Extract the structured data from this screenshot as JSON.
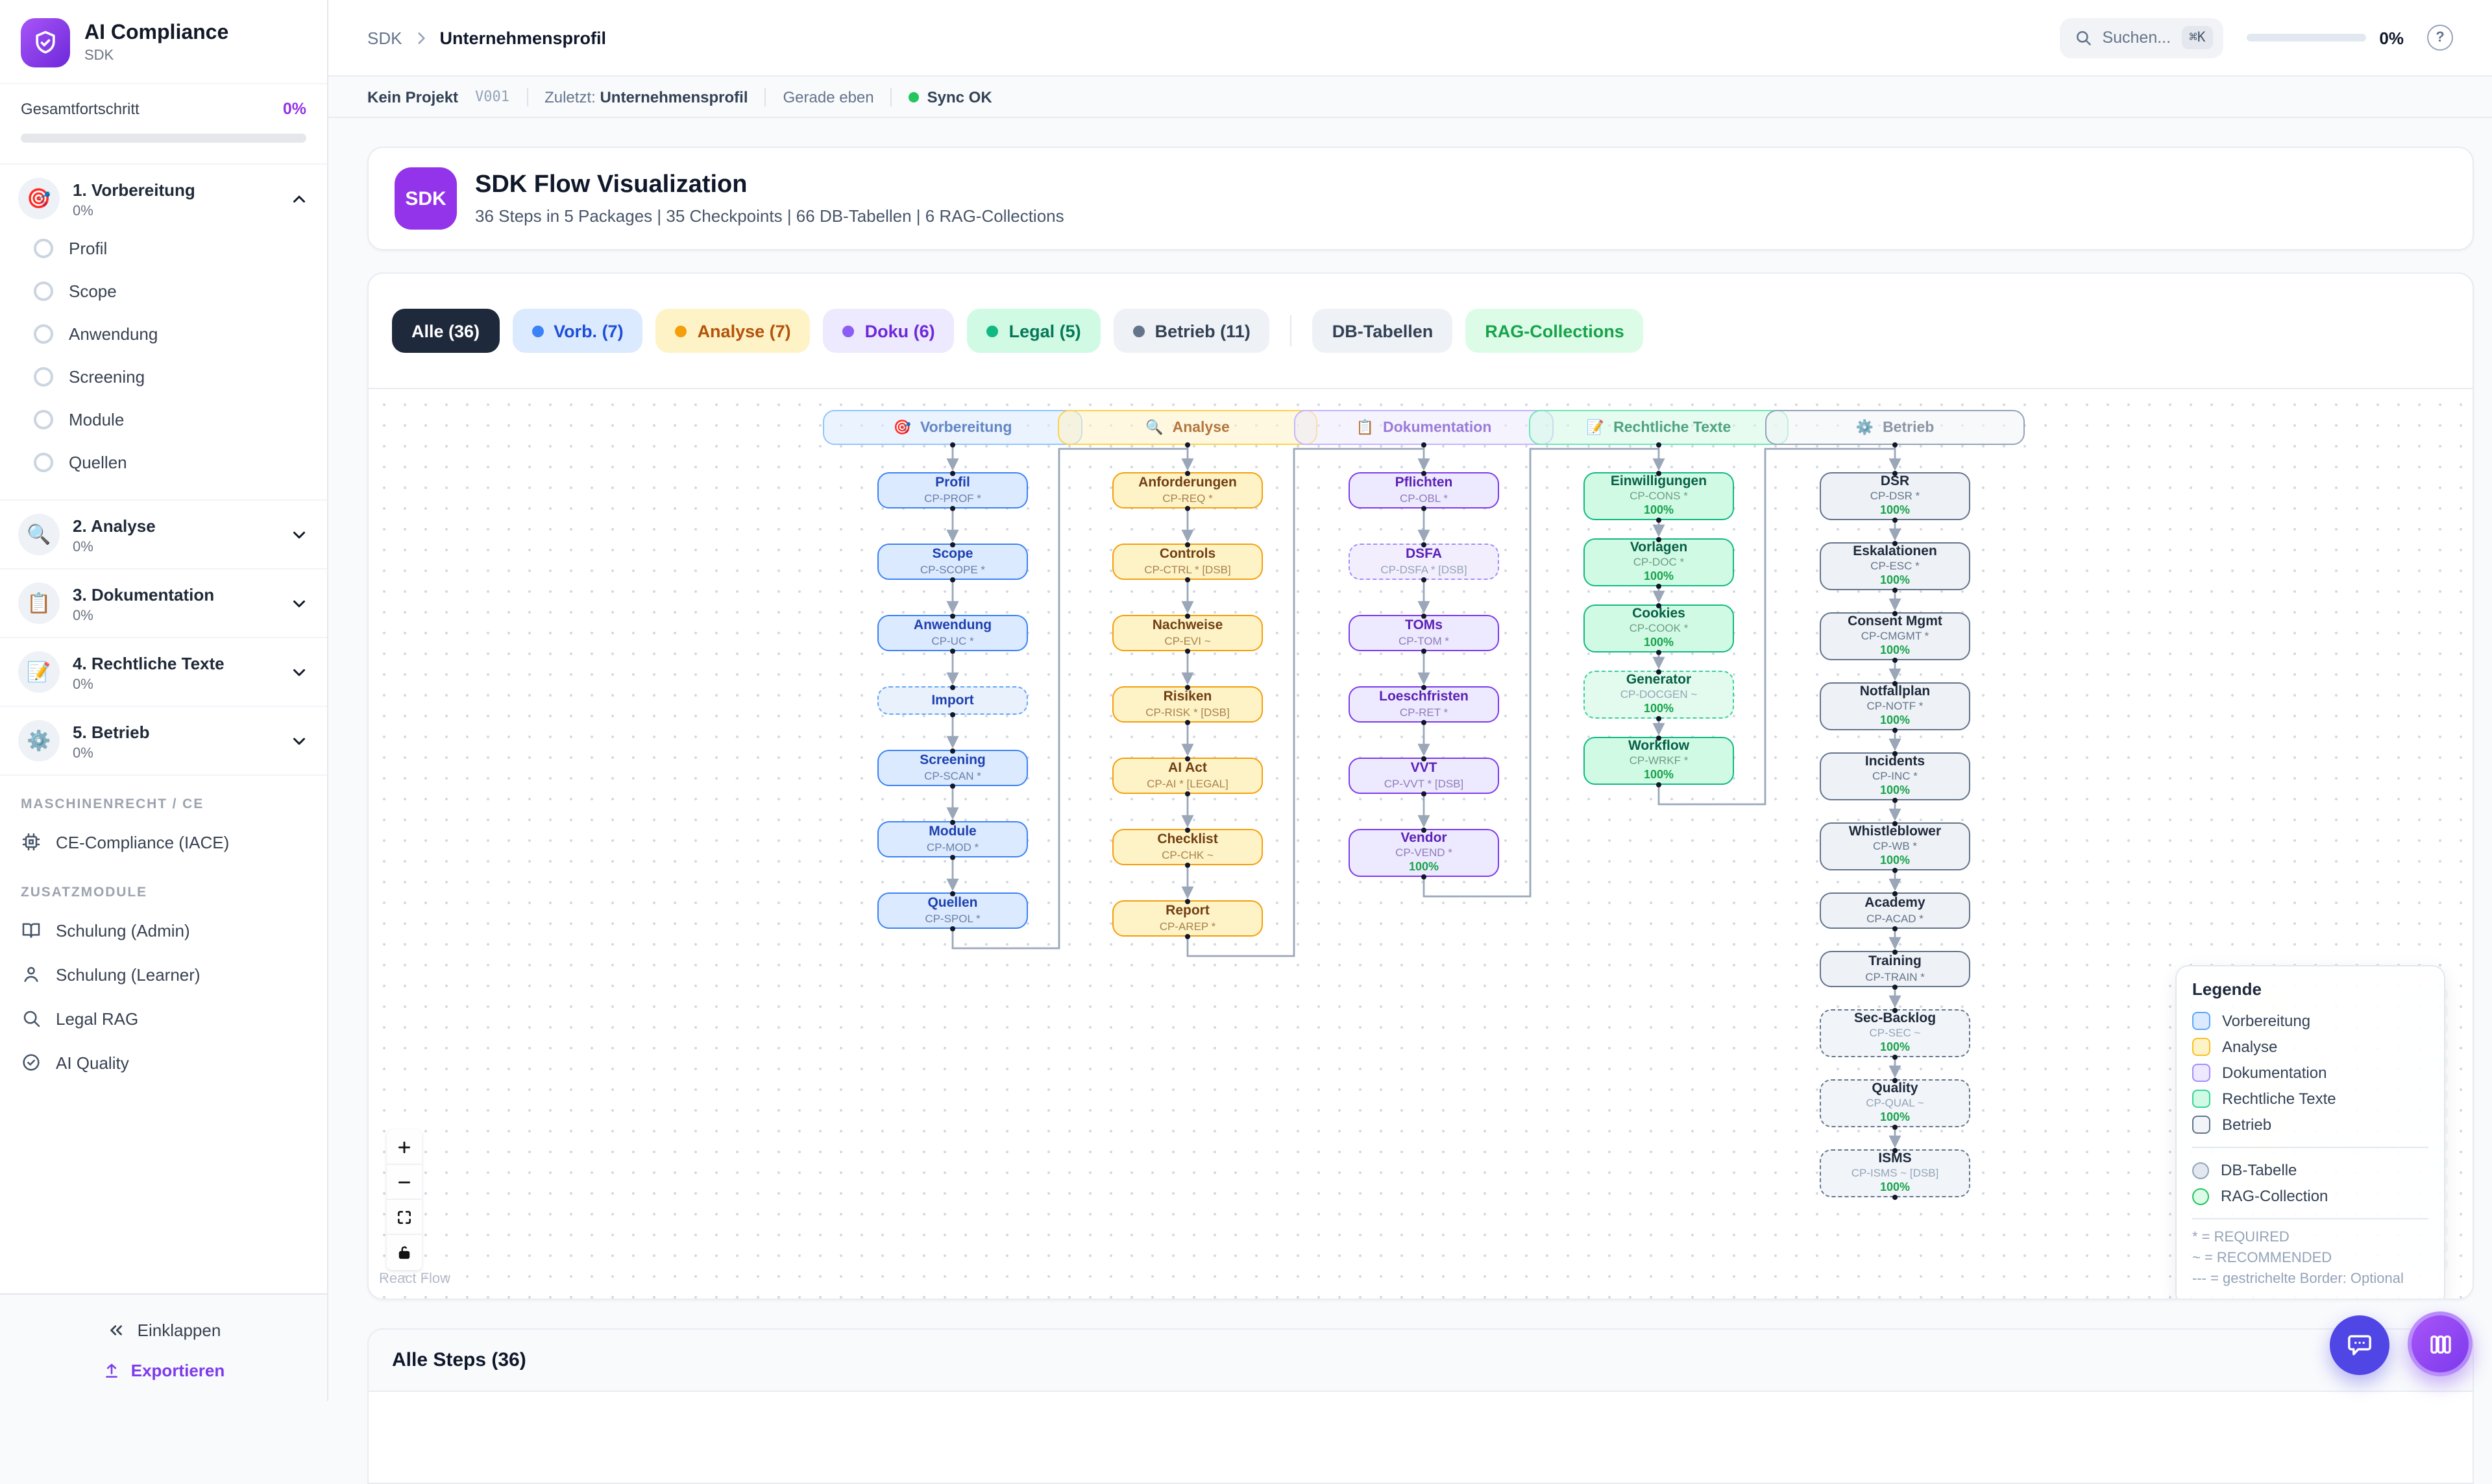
{
  "sidebar": {
    "app_title": "AI Compliance",
    "app_subtitle": "SDK",
    "progress_label": "Gesamtfortschritt",
    "progress_value": "0%",
    "sections": [
      {
        "title": "1. Vorbereitung",
        "emoji": "🎯",
        "progress": "0%",
        "expanded": true,
        "items": [
          "Profil",
          "Scope",
          "Anwendung",
          "Screening",
          "Module",
          "Quellen"
        ]
      },
      {
        "title": "2. Analyse",
        "emoji": "🔍",
        "progress": "0%",
        "expanded": false,
        "items": []
      },
      {
        "title": "3. Dokumentation",
        "emoji": "📋",
        "progress": "0%",
        "expanded": false,
        "items": []
      },
      {
        "title": "4. Rechtliche Texte",
        "emoji": "📝",
        "progress": "0%",
        "expanded": false,
        "items": []
      },
      {
        "title": "5. Betrieb",
        "emoji": "⚙️",
        "progress": "0%",
        "expanded": false,
        "items": []
      }
    ],
    "groups": [
      {
        "label": "MASCHINENRECHT / CE",
        "items": [
          {
            "label": "CE-Compliance (IACE)",
            "icon": "cpu"
          }
        ]
      },
      {
        "label": "ZUSATZMODULE",
        "items": [
          {
            "label": "Schulung (Admin)",
            "icon": "book"
          },
          {
            "label": "Schulung (Learner)",
            "icon": "user"
          },
          {
            "label": "Legal RAG",
            "icon": "search"
          },
          {
            "label": "AI Quality",
            "icon": "check-circle"
          }
        ]
      }
    ],
    "collapse_label": "Einklappen",
    "export_label": "Exportieren"
  },
  "topbar": {
    "breadcrumb_root": "SDK",
    "breadcrumb_current": "Unternehmensprofil",
    "search_placeholder": "Suchen...",
    "search_shortcut": "⌘K",
    "progress_value": "0%"
  },
  "statusbar": {
    "project": "Kein Projekt",
    "version": "V001",
    "last_label": "Zuletzt:",
    "last_value": "Unternehmensprofil",
    "time": "Gerade eben",
    "sync": "Sync OK"
  },
  "header_card": {
    "badge": "SDK",
    "title": "SDK Flow Visualization",
    "subtitle": "36 Steps in 5 Packages | 35 Checkpoints | 66 DB-Tabellen | 6 RAG-Collections"
  },
  "filters": {
    "pills": [
      {
        "label": "Alle (36)",
        "bg": "#1e293b",
        "fg": "#ffffff",
        "active": true
      },
      {
        "label": "Vorb. (7)",
        "bg": "#dbeafe",
        "fg": "#1d4ed8",
        "dot": "#3b82f6"
      },
      {
        "label": "Analyse (7)",
        "bg": "#fef3c7",
        "fg": "#b45309",
        "dot": "#f59e0b"
      },
      {
        "label": "Doku (6)",
        "bg": "#ede9fe",
        "fg": "#6d28d9",
        "dot": "#8b5cf6"
      },
      {
        "label": "Legal (5)",
        "bg": "#d1fae5",
        "fg": "#047857",
        "dot": "#10b981"
      },
      {
        "label": "Betrieb (11)",
        "bg": "#eef2f6",
        "fg": "#334155",
        "dot": "#64748b"
      },
      {
        "divider": true
      },
      {
        "label": "DB-Tabellen",
        "bg": "#eef2f6",
        "fg": "#334155"
      },
      {
        "label": "RAG-Collections",
        "bg": "#dcfce7",
        "fg": "#16a34a"
      }
    ]
  },
  "flow": {
    "columns": [
      {
        "id": "vorbereitung",
        "label": "Vorbereitung",
        "emoji": "🎯",
        "color": "blue",
        "steps": [
          {
            "title": "Profil",
            "code": "CP-PROF *"
          },
          {
            "title": "Scope",
            "code": "CP-SCOPE *"
          },
          {
            "title": "Anwendung",
            "code": "CP-UC *"
          },
          {
            "title": "Import",
            "dashed": true
          },
          {
            "title": "Screening",
            "code": "CP-SCAN *"
          },
          {
            "title": "Module",
            "code": "CP-MOD *"
          },
          {
            "title": "Quellen",
            "code": "CP-SPOL *"
          }
        ]
      },
      {
        "id": "analyse",
        "label": "Analyse",
        "emoji": "🔍",
        "color": "yellow",
        "steps": [
          {
            "title": "Anforderungen",
            "code": "CP-REQ *"
          },
          {
            "title": "Controls",
            "code": "CP-CTRL * [DSB]"
          },
          {
            "title": "Nachweise",
            "code": "CP-EVI ~"
          },
          {
            "title": "Risiken",
            "code": "CP-RISK * [DSB]"
          },
          {
            "title": "AI Act",
            "code": "CP-AI * [LEGAL]"
          },
          {
            "title": "Checklist",
            "code": "CP-CHK ~"
          },
          {
            "title": "Report",
            "code": "CP-AREP *"
          }
        ]
      },
      {
        "id": "dokumentation",
        "label": "Dokumentation",
        "emoji": "📋",
        "color": "purple",
        "steps": [
          {
            "title": "Pflichten",
            "code": "CP-OBL *"
          },
          {
            "title": "DSFA",
            "code": "CP-DSFA * [DSB]",
            "dashed": true
          },
          {
            "title": "TOMs",
            "code": "CP-TOM *"
          },
          {
            "title": "Loeschfristen",
            "code": "CP-RET *"
          },
          {
            "title": "VVT",
            "code": "CP-VVT * [DSB]"
          },
          {
            "title": "Vendor",
            "code": "CP-VEND *",
            "progress": "100%"
          }
        ]
      },
      {
        "id": "rechtliche-texte",
        "label": "Rechtliche Texte",
        "emoji": "📝",
        "color": "green",
        "steps": [
          {
            "title": "Einwilligungen",
            "code": "CP-CONS *",
            "progress": "100%"
          },
          {
            "title": "Vorlagen",
            "code": "CP-DOC *",
            "progress": "100%"
          },
          {
            "title": "Cookies",
            "code": "CP-COOK *",
            "progress": "100%"
          },
          {
            "title": "Generator",
            "code": "CP-DOCGEN ~",
            "progress": "100%",
            "dashed": true
          },
          {
            "title": "Workflow",
            "code": "CP-WRKF *",
            "progress": "100%"
          }
        ]
      },
      {
        "id": "betrieb",
        "label": "Betrieb",
        "emoji": "⚙️",
        "color": "gray",
        "steps": [
          {
            "title": "DSR",
            "code": "CP-DSR *",
            "progress": "100%"
          },
          {
            "title": "Eskalationen",
            "code": "CP-ESC *",
            "progress": "100%"
          },
          {
            "title": "Consent Mgmt",
            "code": "CP-CMGMT *",
            "progress": "100%"
          },
          {
            "title": "Notfallplan",
            "code": "CP-NOTF *",
            "progress": "100%"
          },
          {
            "title": "Incidents",
            "code": "CP-INC *",
            "progress": "100%"
          },
          {
            "title": "Whistleblower",
            "code": "CP-WB *",
            "progress": "100%"
          },
          {
            "title": "Academy",
            "code": "CP-ACAD *"
          },
          {
            "title": "Training",
            "code": "CP-TRAIN *"
          },
          {
            "title": "Sec-Backlog",
            "code": "CP-SEC ~",
            "progress": "100%",
            "dashed": true
          },
          {
            "title": "Quality",
            "code": "CP-QUAL ~",
            "progress": "100%",
            "dashed": true
          },
          {
            "title": "ISMS",
            "code": "CP-ISMS ~ [DSB]",
            "progress": "100%",
            "dashed": true
          }
        ]
      }
    ],
    "legend": {
      "title": "Legende",
      "package_items": [
        {
          "label": "Vorbereitung",
          "color": "blue"
        },
        {
          "label": "Analyse",
          "color": "yellow"
        },
        {
          "label": "Dokumentation",
          "color": "purple"
        },
        {
          "label": "Rechtliche Texte",
          "color": "green"
        },
        {
          "label": "Betrieb",
          "color": "gray"
        }
      ],
      "resource_items": [
        {
          "label": "DB-Tabelle",
          "type": "db"
        },
        {
          "label": "RAG-Collection",
          "type": "rag"
        }
      ],
      "notes": [
        "* = REQUIRED",
        "~ = RECOMMENDED",
        "--- = gestrichelte Border: Optional"
      ]
    },
    "attribution": "React Flow"
  },
  "bottom_panel": {
    "title": "Alle Steps (36)"
  },
  "colors": {
    "accent_purple": "#7c3aed",
    "sync_green": "#22c55e",
    "edge_gray": "#9aa7b9"
  }
}
